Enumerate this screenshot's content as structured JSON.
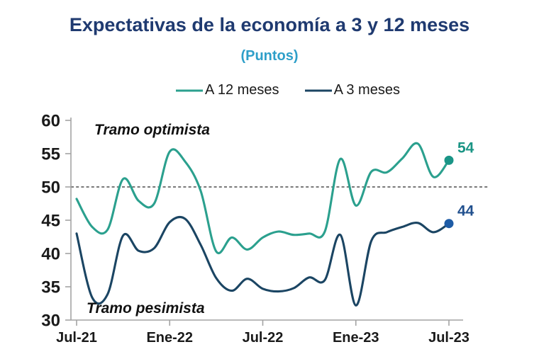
{
  "chart_data": {
    "type": "line",
    "title": "Expectativas de la economía a 3 y 12 meses",
    "subtitle": "(Puntos)",
    "title_color": "#1f3a70",
    "subtitle_color": "#2e9fc9",
    "axis_color": "#a3a3a3",
    "reference_line_color": "#4d4d4d",
    "x": [
      "Jul-21",
      "Ago-21",
      "Sep-21",
      "Oct-21",
      "Nov-21",
      "Dic-21",
      "Ene-22",
      "Feb-22",
      "Mar-22",
      "Abr-22",
      "May-22",
      "Jun-22",
      "Jul-22",
      "Ago-22",
      "Sep-22",
      "Oct-22",
      "Nov-22",
      "Dic-22",
      "Ene-23",
      "Feb-23",
      "Mar-23",
      "Abr-23",
      "May-23",
      "Jun-23",
      "Jul-23"
    ],
    "series": [
      {
        "name": "A 12 meses",
        "color": "#2ba08e",
        "marker_color": "#1a9587",
        "label_color": "#1b9585",
        "end_label": "54",
        "values": [
          48.2,
          44,
          43.6,
          51.2,
          47.9,
          47.5,
          55.3,
          53.8,
          49.4,
          40.3,
          42.4,
          40.6,
          42.4,
          43.3,
          42.8,
          43,
          43.3,
          54.2,
          47.2,
          52.3,
          52.2,
          54.3,
          56.5,
          51.5,
          54
        ]
      },
      {
        "name": "A 3 meses",
        "color": "#1b4563",
        "marker_color": "#1e5ca6",
        "label_color": "#21508e",
        "end_label": "44",
        "values": [
          43,
          33.4,
          33.9,
          42.7,
          40.4,
          40.8,
          44.7,
          45.2,
          41.3,
          36.3,
          34.4,
          36.2,
          34.7,
          34.3,
          34.8,
          36.4,
          36,
          42.8,
          32.2,
          41.9,
          43.2,
          44,
          44.6,
          43.2,
          44.5
        ]
      }
    ],
    "ylim": [
      30,
      60
    ],
    "yticks": [
      60,
      55,
      50,
      45,
      40,
      35,
      30
    ],
    "xticks": [
      {
        "label": "Jul-21",
        "index": 0
      },
      {
        "label": "Ene-22",
        "index": 6
      },
      {
        "label": "Jul-22",
        "index": 12
      },
      {
        "label": "Ene-23",
        "index": 18
      },
      {
        "label": "Jul-23",
        "index": 24
      }
    ],
    "reference_line": 50,
    "grid": false,
    "legend_position": "top",
    "annotations": [
      "Tramo optimista",
      "Tramo pesimista"
    ]
  }
}
